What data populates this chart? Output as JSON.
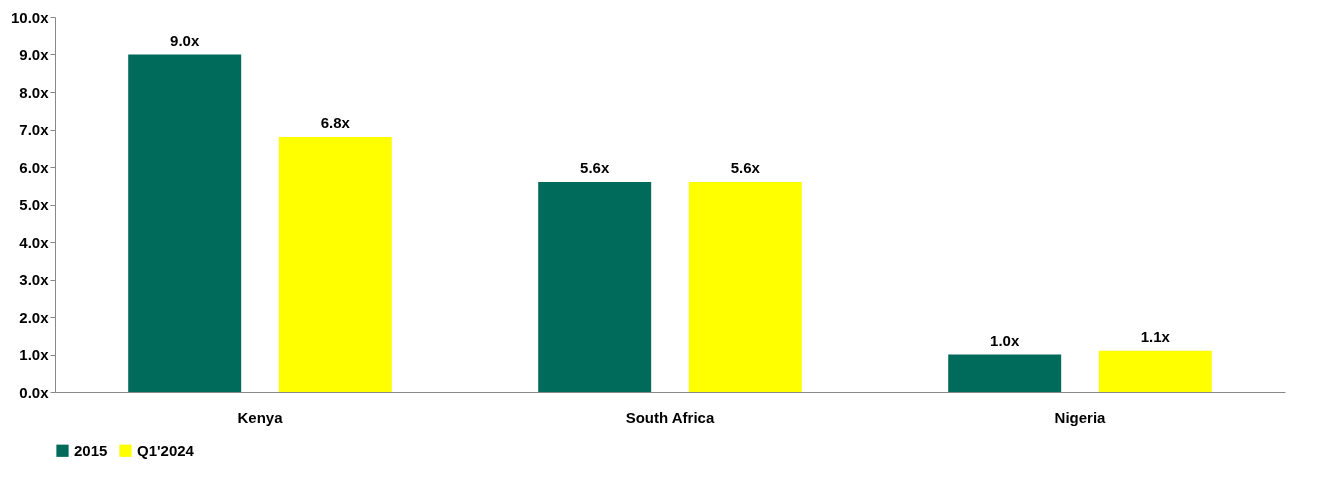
{
  "chart_data": {
    "type": "bar",
    "categories": [
      "Kenya",
      "South Africa",
      "Nigeria"
    ],
    "series": [
      {
        "name": "2015",
        "color": "#006b5a",
        "values": [
          9.0,
          5.6,
          1.0
        ],
        "value_labels": [
          "9.0x",
          "5.6x",
          "1.0x"
        ]
      },
      {
        "name": "Q1'2024",
        "color": "#ffff00",
        "values": [
          6.8,
          5.6,
          1.1
        ],
        "value_labels": [
          "6.8x",
          "5.6x",
          "1.1x"
        ]
      }
    ],
    "ylim": [
      0,
      10
    ],
    "yticks": [
      {
        "value": 0,
        "label": "0.0x"
      },
      {
        "value": 1,
        "label": "1.0x"
      },
      {
        "value": 2,
        "label": "2.0x"
      },
      {
        "value": 3,
        "label": "3.0x"
      },
      {
        "value": 4,
        "label": "4.0x"
      },
      {
        "value": 5,
        "label": "5.0x"
      },
      {
        "value": 6,
        "label": "6.0x"
      },
      {
        "value": 7,
        "label": "7.0x"
      },
      {
        "value": 8,
        "label": "8.0x"
      },
      {
        "value": 9,
        "label": "9.0x"
      },
      {
        "value": 10,
        "label": "10.0x"
      }
    ],
    "grid": false,
    "legend": "bottom"
  }
}
